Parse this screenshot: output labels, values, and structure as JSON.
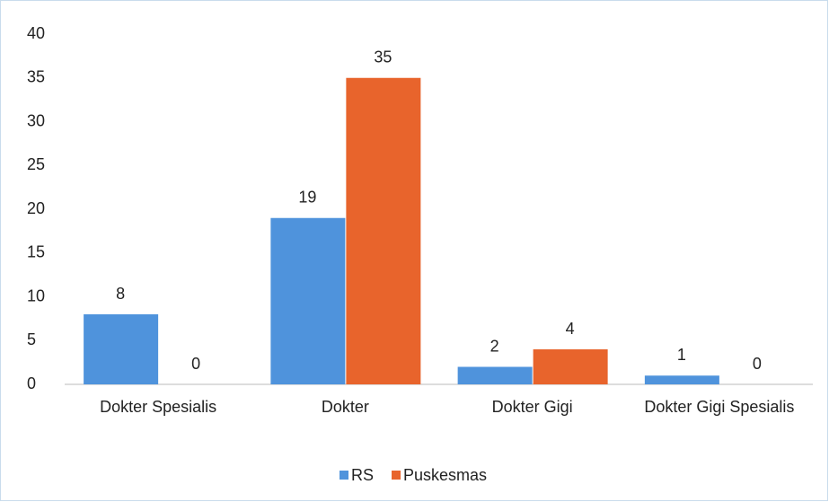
{
  "chart_data": {
    "type": "bar",
    "categories": [
      "Dokter Spesialis",
      "Dokter",
      "Dokter Gigi",
      "Dokter Gigi Spesialis"
    ],
    "series": [
      {
        "name": "RS",
        "color": "#4f93dc",
        "values": [
          8,
          19,
          2,
          1
        ]
      },
      {
        "name": "Puskesmas",
        "color": "#e8642c",
        "values": [
          0,
          35,
          4,
          0
        ]
      }
    ],
    "ylim": [
      0,
      40
    ],
    "yticks": [
      0,
      5,
      10,
      15,
      20,
      25,
      30,
      35,
      40
    ],
    "grid": false,
    "legend": "bottom"
  }
}
